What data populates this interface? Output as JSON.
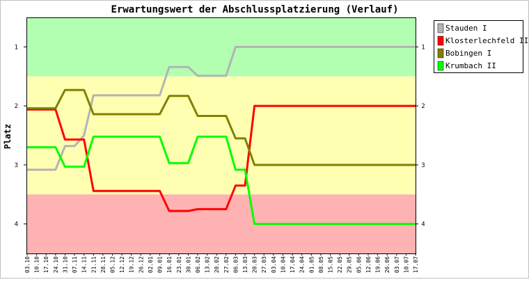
{
  "chart_data": {
    "type": "line",
    "title": "Erwartungswert der Abschlussplatzierung (Verlauf)",
    "ylabel": "Platz",
    "xlabel": "",
    "ylim": [
      4.5,
      0.5
    ],
    "y_inverted": true,
    "yticks": [
      1,
      2,
      3,
      4
    ],
    "ytick_labels": [
      "1",
      "2",
      "3",
      "4"
    ],
    "grid": false,
    "legend_position": "top-right",
    "bands": [
      {
        "from": 0.5,
        "to": 1.5,
        "color": "#b2ffb2"
      },
      {
        "from": 1.5,
        "to": 3.5,
        "color": "#ffffb2"
      },
      {
        "from": 3.5,
        "to": 4.5,
        "color": "#ffb2b2"
      }
    ],
    "x": [
      "03.10",
      "10.10",
      "17.10",
      "24.10",
      "31.10",
      "07.11",
      "14.11",
      "21.11",
      "28.11",
      "05.12",
      "12.12",
      "19.12",
      "26.12",
      "02.01",
      "09.01",
      "16.01",
      "23.01",
      "30.01",
      "06.02",
      "13.02",
      "20.02",
      "27.02",
      "06.03",
      "13.03",
      "20.03",
      "27.03",
      "03.04",
      "10.04",
      "17.04",
      "24.04",
      "01.05",
      "08.05",
      "15.05",
      "22.05",
      "29.05",
      "05.06",
      "12.06",
      "19.06",
      "26.06",
      "03.07",
      "10.07",
      "17.07"
    ],
    "series": [
      {
        "name": "Stauden I",
        "color": "#b4b4b4",
        "values": [
          3.08,
          3.08,
          3.08,
          3.08,
          2.68,
          2.68,
          2.5,
          1.82,
          1.82,
          1.82,
          1.82,
          1.82,
          1.82,
          1.82,
          1.82,
          1.34,
          1.34,
          1.34,
          1.49,
          1.49,
          1.49,
          1.49,
          1.0,
          1.0,
          1.0,
          1.0,
          1.0,
          1.0,
          1.0,
          1.0,
          1.0,
          1.0,
          1.0,
          1.0,
          1.0,
          1.0,
          1.0,
          1.0,
          1.0,
          1.0,
          1.0,
          1.0
        ]
      },
      {
        "name": "Klosterlechfeld II",
        "color": "#ff0000",
        "values": [
          2.06,
          2.06,
          2.06,
          2.06,
          2.57,
          2.57,
          2.57,
          3.44,
          3.44,
          3.44,
          3.44,
          3.44,
          3.44,
          3.44,
          3.44,
          3.78,
          3.78,
          3.78,
          3.75,
          3.75,
          3.75,
          3.75,
          3.35,
          3.35,
          2.0,
          2.0,
          2.0,
          2.0,
          2.0,
          2.0,
          2.0,
          2.0,
          2.0,
          2.0,
          2.0,
          2.0,
          2.0,
          2.0,
          2.0,
          2.0,
          2.0,
          2.0
        ]
      },
      {
        "name": "Bobingen I",
        "color": "#808000",
        "values": [
          2.04,
          2.04,
          2.04,
          2.04,
          1.73,
          1.73,
          1.73,
          2.14,
          2.14,
          2.14,
          2.14,
          2.14,
          2.14,
          2.14,
          2.14,
          1.83,
          1.83,
          1.83,
          2.17,
          2.17,
          2.17,
          2.17,
          2.55,
          2.55,
          3.0,
          3.0,
          3.0,
          3.0,
          3.0,
          3.0,
          3.0,
          3.0,
          3.0,
          3.0,
          3.0,
          3.0,
          3.0,
          3.0,
          3.0,
          3.0,
          3.0,
          3.0
        ]
      },
      {
        "name": "Krumbach II",
        "color": "#00ff00",
        "values": [
          2.7,
          2.7,
          2.7,
          2.7,
          3.03,
          3.03,
          3.03,
          2.52,
          2.52,
          2.52,
          2.52,
          2.52,
          2.52,
          2.52,
          2.52,
          2.97,
          2.97,
          2.97,
          2.52,
          2.52,
          2.52,
          2.52,
          3.08,
          3.08,
          4.0,
          4.0,
          4.0,
          4.0,
          4.0,
          4.0,
          4.0,
          4.0,
          4.0,
          4.0,
          4.0,
          4.0,
          4.0,
          4.0,
          4.0,
          4.0,
          4.0,
          4.0
        ]
      }
    ]
  }
}
